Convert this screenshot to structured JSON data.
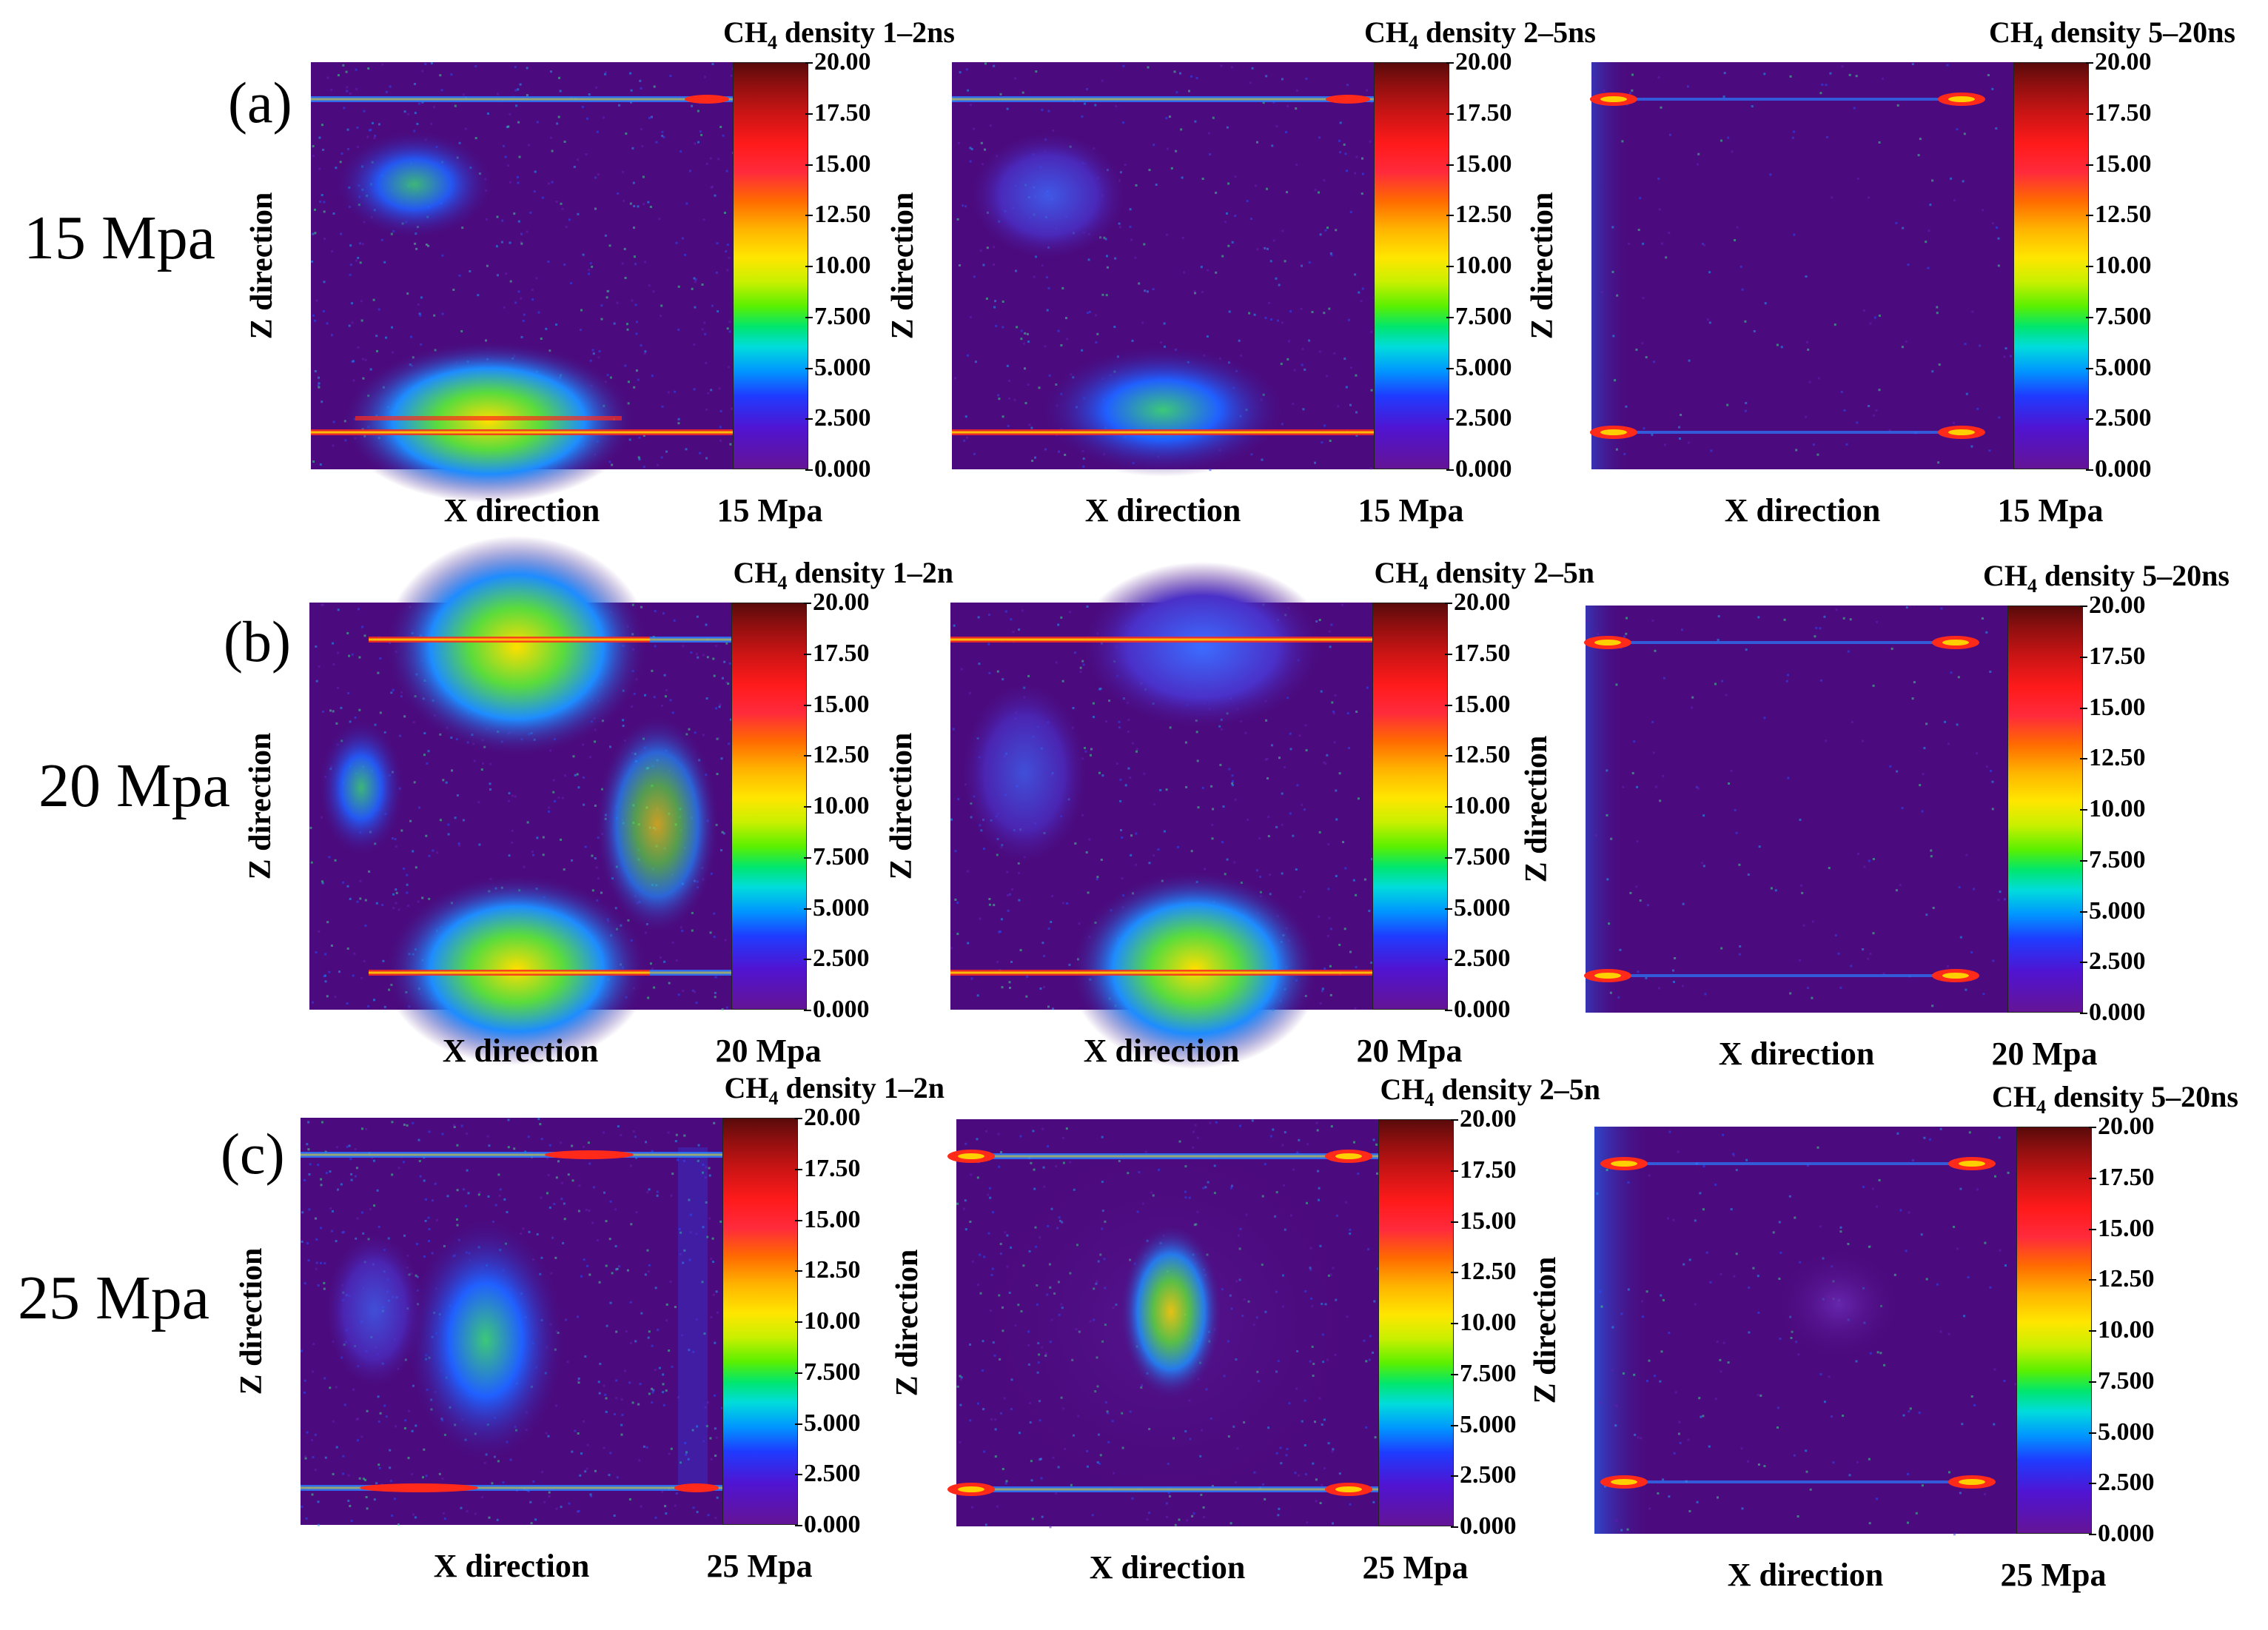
{
  "colorbar": {
    "ticks": [
      "20.00",
      "17.50",
      "15.00",
      "12.50",
      "10.00",
      "7.500",
      "5.000",
      "2.500",
      "0.000"
    ]
  },
  "rows": [
    {
      "letter": "(a)",
      "pressure_label": "15 Mpa",
      "panels": [
        {
          "title_prefix": "CH",
          "title_sub": "4",
          "title_suffix": " density 1–2ns",
          "xlabel": "X direction",
          "ylabel": "Z direction",
          "cbar_label": "15 Mpa"
        },
        {
          "title_prefix": "CH",
          "title_sub": "4",
          "title_suffix": " density 2–5ns",
          "xlabel": "X direction",
          "ylabel": "Z direction",
          "cbar_label": "15 Mpa"
        },
        {
          "title_prefix": "CH",
          "title_sub": "4",
          "title_suffix": " density 5–20ns",
          "xlabel": "X direction",
          "ylabel": "Z direction",
          "cbar_label": "15 Mpa"
        }
      ]
    },
    {
      "letter": "(b)",
      "pressure_label": "20 Mpa",
      "panels": [
        {
          "title_prefix": "CH",
          "title_sub": "4",
          "title_suffix": " density 1–2n",
          "xlabel": "X direction",
          "ylabel": "Z direction",
          "cbar_label": "20 Mpa"
        },
        {
          "title_prefix": "CH",
          "title_sub": "4",
          "title_suffix": " density 2–5n",
          "xlabel": "X direction",
          "ylabel": "Z direction",
          "cbar_label": "20 Mpa"
        },
        {
          "title_prefix": "CH",
          "title_sub": "4",
          "title_suffix": " density 5–20ns",
          "xlabel": "X direction",
          "ylabel": "Z direction",
          "cbar_label": "20 Mpa"
        }
      ]
    },
    {
      "letter": "(c)",
      "pressure_label": "25 Mpa",
      "panels": [
        {
          "title_prefix": "CH",
          "title_sub": "4",
          "title_suffix": " density 1–2n",
          "xlabel": "X direction",
          "ylabel": "Z direction",
          "cbar_label": "25 Mpa"
        },
        {
          "title_prefix": "CH",
          "title_sub": "4",
          "title_suffix": " density 2–5n",
          "xlabel": "X direction",
          "ylabel": "Z direction",
          "cbar_label": "25 Mpa"
        },
        {
          "title_prefix": "CH",
          "title_sub": "4",
          "title_suffix": " density 5–20ns",
          "xlabel": "X direction",
          "ylabel": "Z direction",
          "cbar_label": "25 Mpa"
        }
      ]
    }
  ]
}
